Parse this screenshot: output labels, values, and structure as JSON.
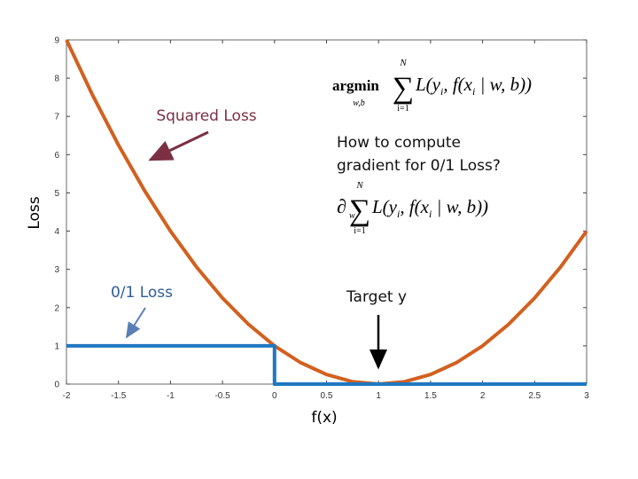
{
  "chart_data": {
    "type": "line",
    "xlabel": "f(x)",
    "ylabel": "Loss",
    "xlim": [
      -2,
      3
    ],
    "ylim": [
      0,
      9
    ],
    "xticks": [
      -2,
      -1.5,
      -1,
      -0.5,
      0,
      0.5,
      1,
      1.5,
      2,
      2.5,
      3
    ],
    "yticks": [
      0,
      1,
      2,
      3,
      4,
      5,
      6,
      7,
      8,
      9
    ],
    "series": [
      {
        "name": "Squared Loss",
        "color": "#d2601f",
        "x": [
          -2,
          -1.75,
          -1.5,
          -1.25,
          -1,
          -0.75,
          -0.5,
          -0.25,
          0,
          0.25,
          0.5,
          0.75,
          1,
          1.25,
          1.5,
          1.75,
          2,
          2.25,
          2.5,
          2.75,
          3
        ],
        "values": [
          9,
          7.5625,
          6.25,
          5.0625,
          4,
          3.0625,
          2.25,
          1.5625,
          1,
          0.5625,
          0.25,
          0.0625,
          0,
          0.0625,
          0.25,
          0.5625,
          1,
          1.5625,
          2.25,
          3.0625,
          4
        ]
      },
      {
        "name": "0/1 Loss",
        "color": "#1f78c1",
        "x": [
          -2,
          0,
          0,
          3
        ],
        "values": [
          1,
          1,
          0,
          0
        ]
      }
    ],
    "annotations": [
      "How to compute",
      "gradient for 0/1 Loss?",
      "Target y"
    ],
    "formulas": [
      {
        "operator": "argmin",
        "operator_sub": "w,b",
        "symbol": "∑",
        "sum_top": "N",
        "sum_bottom": "i=1",
        "parts": [
          "L(y",
          "i",
          ", f(x",
          "i",
          " | w, b))"
        ]
      },
      {
        "operator": "∂",
        "operator_sub": "w",
        "symbol": "∑",
        "sum_top": "N",
        "sum_bottom": "i=1",
        "parts": [
          "L(y",
          "i",
          ", f(x",
          "i",
          " | w, b))"
        ]
      }
    ]
  }
}
